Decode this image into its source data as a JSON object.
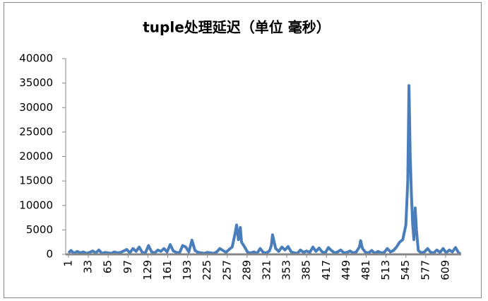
{
  "chart_data": {
    "type": "line",
    "title": "tuple处理延迟（单位 毫秒）",
    "color": "#4a7ebb",
    "x": [
      1,
      5,
      10,
      15,
      20,
      25,
      30,
      35,
      40,
      45,
      50,
      55,
      60,
      65,
      70,
      75,
      80,
      85,
      90,
      95,
      100,
      105,
      110,
      115,
      120,
      125,
      130,
      135,
      140,
      145,
      150,
      155,
      160,
      165,
      170,
      175,
      180,
      185,
      190,
      195,
      200,
      205,
      210,
      215,
      220,
      225,
      230,
      235,
      240,
      245,
      250,
      255,
      260,
      265,
      270,
      272,
      275,
      278,
      280,
      285,
      290,
      295,
      300,
      305,
      310,
      315,
      320,
      325,
      328,
      330,
      335,
      340,
      345,
      350,
      355,
      360,
      365,
      370,
      375,
      380,
      385,
      390,
      395,
      400,
      405,
      410,
      415,
      420,
      425,
      430,
      435,
      440,
      445,
      450,
      455,
      460,
      465,
      470,
      472,
      475,
      480,
      485,
      490,
      495,
      500,
      505,
      510,
      515,
      520,
      525,
      530,
      535,
      540,
      545,
      548,
      550,
      552,
      554,
      556,
      558,
      560,
      562,
      565,
      570,
      575,
      580,
      585,
      590,
      595,
      600,
      605,
      610,
      615,
      620,
      625,
      630,
      633
    ],
    "values": [
      300,
      800,
      200,
      600,
      300,
      500,
      200,
      400,
      700,
      300,
      900,
      200,
      400,
      300,
      200,
      500,
      300,
      400,
      700,
      1000,
      300,
      1200,
      600,
      1500,
      400,
      300,
      1800,
      500,
      300,
      900,
      600,
      1200,
      500,
      2000,
      700,
      400,
      300,
      1800,
      1500,
      500,
      2900,
      800,
      400,
      300,
      200,
      400,
      300,
      200,
      500,
      1200,
      800,
      400,
      1000,
      1500,
      4500,
      6000,
      3000,
      5500,
      2500,
      1500,
      400,
      300,
      500,
      200,
      1200,
      400,
      300,
      700,
      1800,
      4000,
      1200,
      600,
      1500,
      900,
      1600,
      500,
      300,
      200,
      900,
      400,
      700,
      400,
      1500,
      600,
      1300,
      500,
      300,
      1400,
      800,
      300,
      500,
      900,
      300,
      400,
      700,
      300,
      500,
      1500,
      2800,
      1200,
      400,
      300,
      800,
      200,
      600,
      300,
      400,
      1200,
      500,
      800,
      1500,
      2500,
      3000,
      6000,
      15000,
      34500,
      20000,
      12000,
      6000,
      3000,
      9500,
      5000,
      800,
      300,
      500,
      1200,
      400,
      300,
      900,
      400,
      1200,
      300,
      900,
      500,
      1400,
      300,
      100
    ],
    "xlim": [
      1,
      633
    ],
    "xticks": [
      1,
      33,
      65,
      97,
      129,
      161,
      193,
      225,
      257,
      289,
      321,
      353,
      385,
      417,
      449,
      481,
      513,
      545,
      577,
      609
    ],
    "ylim": [
      0,
      40000
    ],
    "yticks": [
      0,
      5000,
      10000,
      15000,
      20000,
      25000,
      30000,
      35000,
      40000
    ]
  }
}
